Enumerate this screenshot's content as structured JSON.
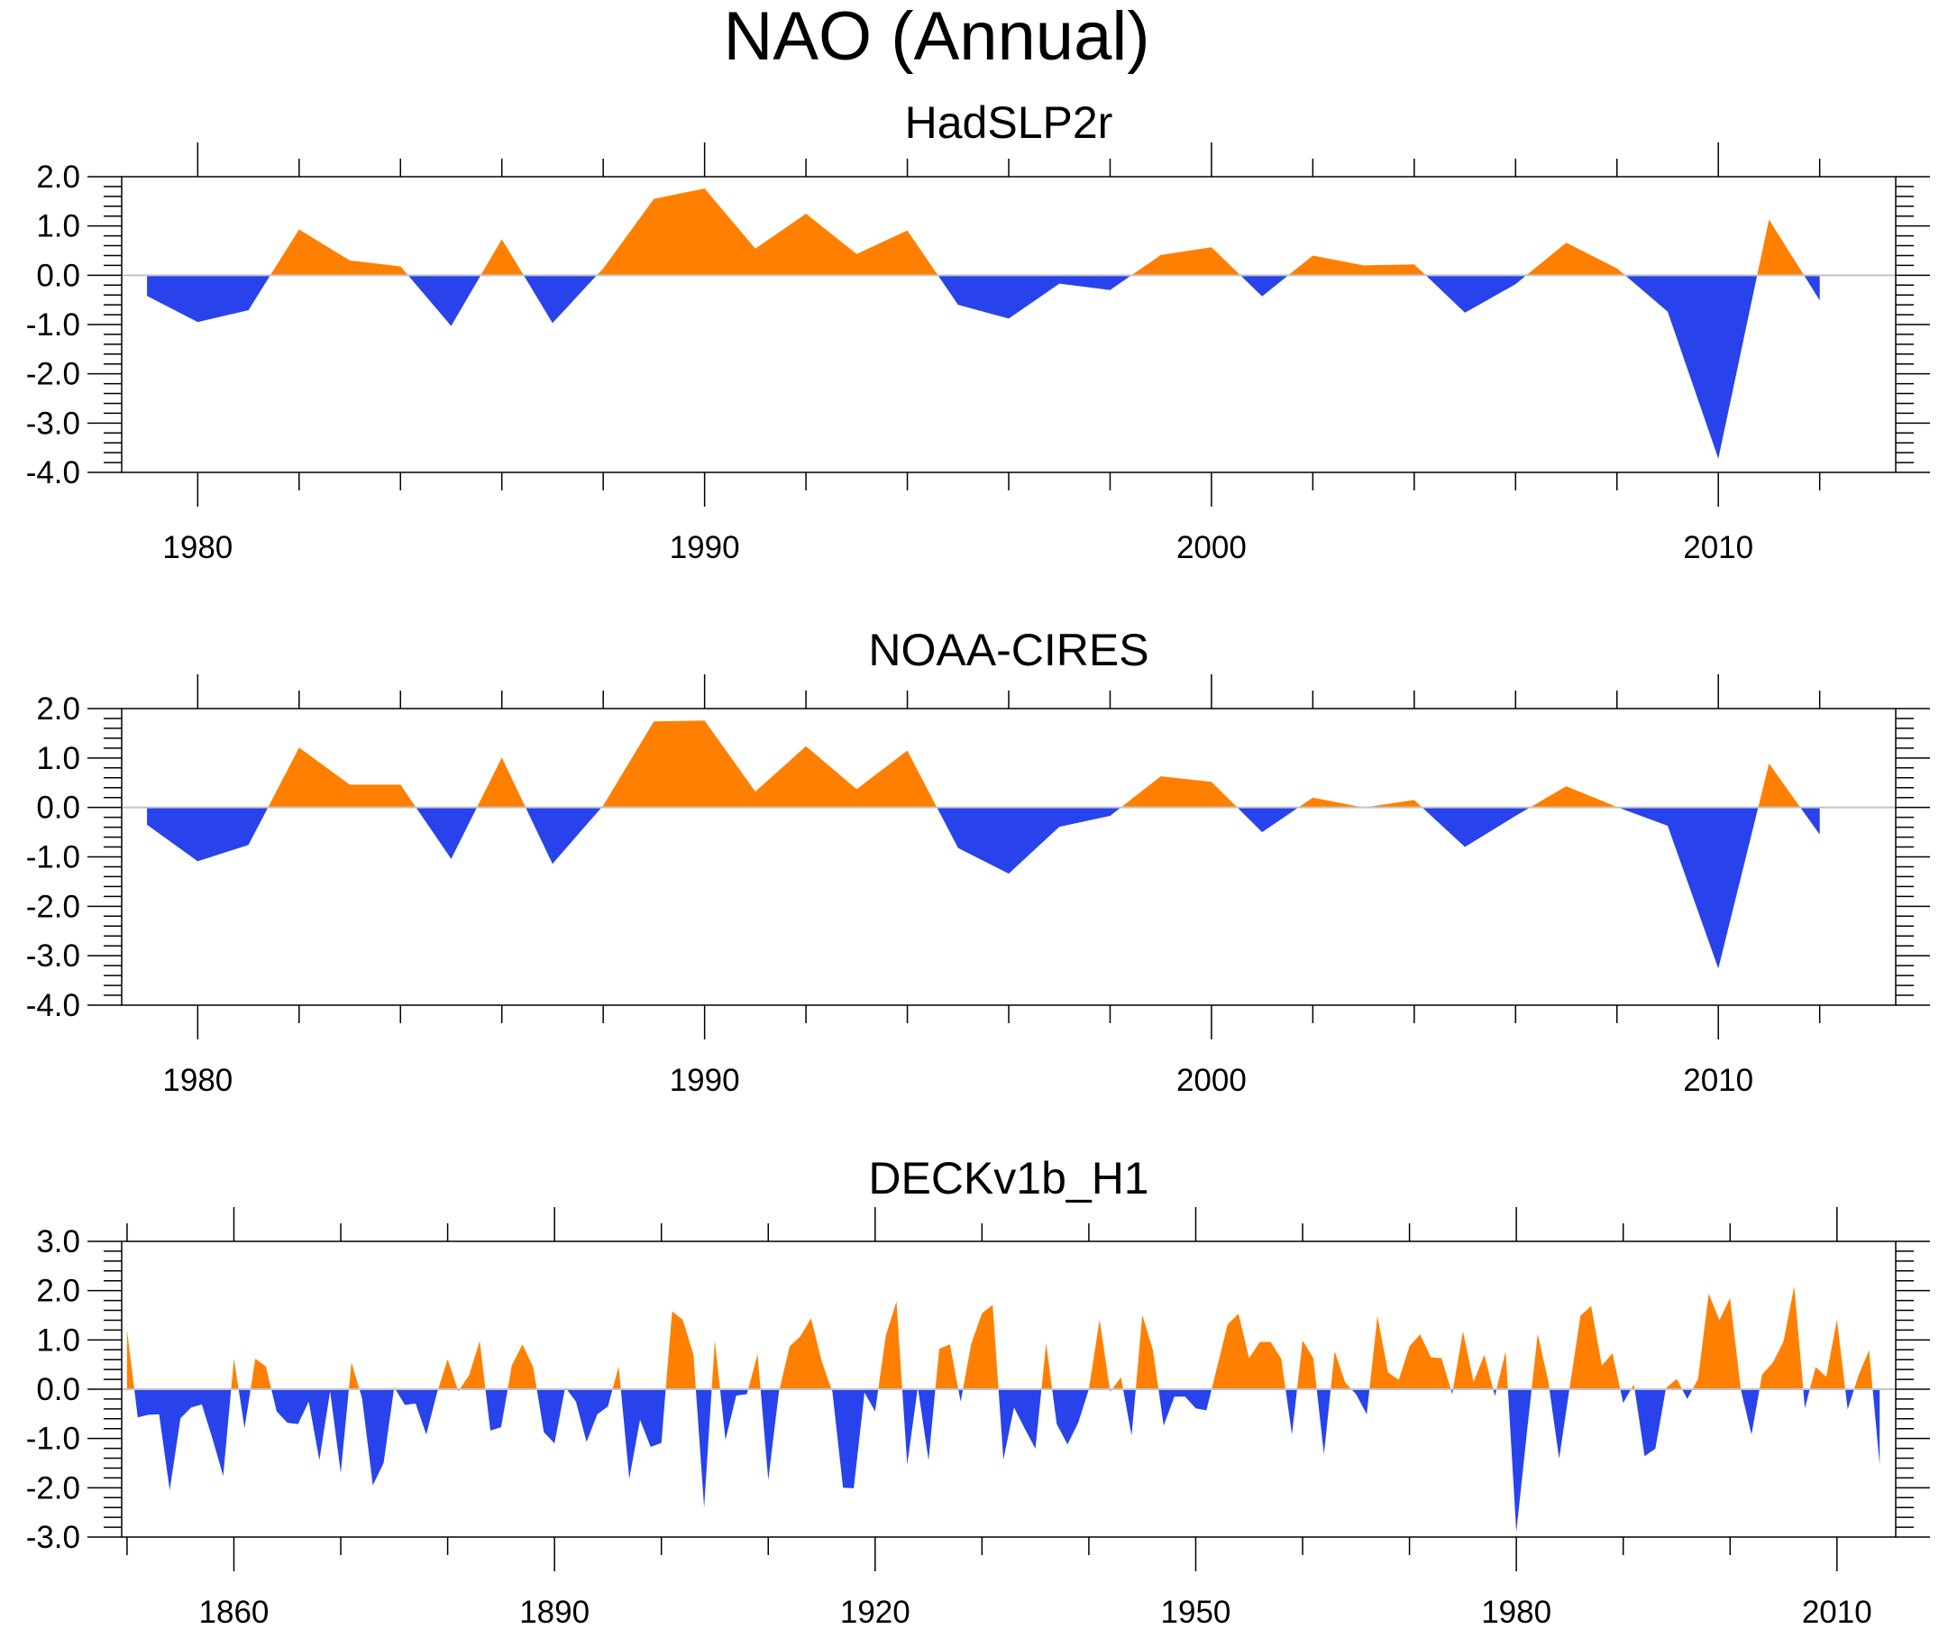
{
  "figure": {
    "title": "NAO (Annual)",
    "colors": {
      "positive": "#ff8000",
      "negative": "#2843ec",
      "zero_line": "#c4c4c4",
      "axis": "#000000"
    }
  },
  "chart_data": [
    {
      "type": "area",
      "title": "HadSLP2r",
      "xlabel": "",
      "ylabel": "",
      "xlim": [
        1978.5,
        2013.5
      ],
      "ylim": [
        -4.0,
        2.0
      ],
      "grid": false,
      "legend": "none",
      "fill_rule": "above zero orange, below zero blue",
      "yticks": [
        "2.0",
        "1.0",
        "0.0",
        "-1.0",
        "-2.0",
        "-3.0",
        "-4.0"
      ],
      "ytick_values": [
        2,
        1,
        0,
        -1,
        -2,
        -3,
        -4
      ],
      "yminor_step": 0.2,
      "xticks_major": [
        1980,
        1990,
        2000,
        2010
      ],
      "xtick_labels": [
        "1980",
        "1990",
        "2000",
        "2010"
      ],
      "xminor_step": 2,
      "x": [
        1979,
        1980,
        1981,
        1982,
        1983,
        1984,
        1985,
        1986,
        1987,
        1988,
        1989,
        1990,
        1991,
        1992,
        1993,
        1994,
        1995,
        1996,
        1997,
        1998,
        1999,
        2000,
        2001,
        2002,
        2003,
        2004,
        2005,
        2006,
        2007,
        2008,
        2009,
        2010,
        2011,
        2012
      ],
      "values": [
        -0.42,
        -0.95,
        -0.71,
        0.93,
        0.3,
        0.18,
        -1.03,
        0.73,
        -0.97,
        0.14,
        1.55,
        1.76,
        0.54,
        1.25,
        0.43,
        0.91,
        -0.6,
        -0.88,
        -0.17,
        -0.3,
        0.41,
        0.57,
        -0.43,
        0.4,
        0.2,
        0.22,
        -0.76,
        -0.18,
        0.66,
        0.14,
        -0.74,
        -3.72,
        1.13,
        -0.51
      ]
    },
    {
      "type": "area",
      "title": "NOAA-CIRES",
      "xlabel": "",
      "ylabel": "",
      "xlim": [
        1978.5,
        2013.5
      ],
      "ylim": [
        -4.0,
        2.0
      ],
      "grid": false,
      "legend": "none",
      "fill_rule": "above zero orange, below zero blue",
      "yticks": [
        "2.0",
        "1.0",
        "0.0",
        "-1.0",
        "-2.0",
        "-3.0",
        "-4.0"
      ],
      "ytick_values": [
        2,
        1,
        0,
        -1,
        -2,
        -3,
        -4
      ],
      "yminor_step": 0.2,
      "xticks_major": [
        1980,
        1990,
        2000,
        2010
      ],
      "xtick_labels": [
        "1980",
        "1990",
        "2000",
        "2010"
      ],
      "xminor_step": 2,
      "x": [
        1979,
        1980,
        1981,
        1982,
        1983,
        1984,
        1985,
        1986,
        1987,
        1988,
        1989,
        1990,
        1991,
        1992,
        1993,
        1994,
        1995,
        1996,
        1997,
        1998,
        1999,
        2000,
        2001,
        2002,
        2003,
        2004,
        2005,
        2006,
        2007,
        2008,
        2009,
        2010,
        2011,
        2012
      ],
      "values": [
        -0.35,
        -1.09,
        -0.76,
        1.21,
        0.46,
        0.46,
        -1.04,
        1.01,
        -1.14,
        0.04,
        1.74,
        1.76,
        0.32,
        1.24,
        0.37,
        1.15,
        -0.82,
        -1.34,
        -0.39,
        -0.17,
        0.63,
        0.52,
        -0.5,
        0.2,
        0.0,
        0.15,
        -0.8,
        -0.17,
        0.43,
        0.01,
        -0.37,
        -3.26,
        0.89,
        -0.55
      ]
    },
    {
      "type": "area",
      "title": "DECKv1b_H1",
      "xlabel": "",
      "ylabel": "",
      "xlim": [
        1849.5,
        2015.5
      ],
      "ylim": [
        -3.0,
        3.0
      ],
      "grid": false,
      "legend": "none",
      "fill_rule": "above zero orange, below zero blue",
      "yticks": [
        "3.0",
        "2.0",
        "1.0",
        "0.0",
        "-1.0",
        "-2.0",
        "-3.0"
      ],
      "ytick_values": [
        3,
        2,
        1,
        0,
        -1,
        -2,
        -3
      ],
      "yminor_step": 0.2,
      "xticks_major": [
        1860,
        1890,
        1920,
        1950,
        1980,
        2010
      ],
      "xtick_labels": [
        "1860",
        "1890",
        "1920",
        "1950",
        "1980",
        "2010"
      ],
      "xminor_step": 10,
      "x_start": 1850,
      "values": [
        1.2,
        -0.57,
        -0.52,
        -0.51,
        -2.05,
        -0.59,
        -0.37,
        -0.31,
        -1.01,
        -1.76,
        0.62,
        -0.79,
        0.62,
        0.46,
        -0.45,
        -0.68,
        -0.71,
        -0.25,
        -1.44,
        -0.04,
        -1.7,
        0.54,
        -0.19,
        -1.95,
        -1.5,
        0.04,
        -0.32,
        -0.29,
        -0.92,
        -0.08,
        0.61,
        -0.04,
        0.28,
        0.98,
        -0.84,
        -0.77,
        0.48,
        0.91,
        0.45,
        -0.87,
        -1.1,
        0.04,
        -0.25,
        -1.07,
        -0.51,
        -0.35,
        0.46,
        -1.82,
        -0.62,
        -1.17,
        -1.09,
        1.58,
        1.41,
        0.7,
        -2.4,
        0.99,
        -1.03,
        -0.13,
        -0.1,
        0.71,
        -1.84,
        -0.05,
        0.87,
        1.07,
        1.44,
        0.57,
        -0.05,
        -2.0,
        -2.01,
        -0.07,
        -0.45,
        1.09,
        1.78,
        -1.53,
        0.04,
        -1.44,
        0.82,
        0.91,
        -0.25,
        0.93,
        1.54,
        1.71,
        -1.43,
        -0.37,
        -0.8,
        -1.21,
        0.94,
        -0.71,
        -1.12,
        -0.68,
        0.0,
        1.41,
        -0.05,
        0.24,
        -0.94,
        1.51,
        0.79,
        -0.74,
        -0.15,
        -0.15,
        -0.39,
        -0.43,
        0.45,
        1.32,
        1.53,
        0.63,
        0.96,
        0.96,
        0.62,
        -0.92,
        0.99,
        0.63,
        -1.32,
        0.77,
        0.13,
        -0.1,
        -0.51,
        1.48,
        0.34,
        0.19,
        0.87,
        1.11,
        0.65,
        0.63,
        -0.1,
        1.17,
        0.15,
        0.7,
        -0.14,
        0.77,
        -2.9,
        -0.85,
        1.12,
        0.15,
        -1.41,
        0.05,
        1.49,
        1.69,
        0.48,
        0.73,
        -0.28,
        0.1,
        -1.36,
        -1.21,
        0.02,
        0.21,
        -0.2,
        0.21,
        1.94,
        1.4,
        1.85,
        0.0,
        -0.92,
        0.3,
        0.54,
        0.97,
        2.09,
        -0.39,
        0.45,
        0.25,
        1.41,
        -0.41,
        0.27,
        0.79,
        -1.53
      ]
    }
  ]
}
